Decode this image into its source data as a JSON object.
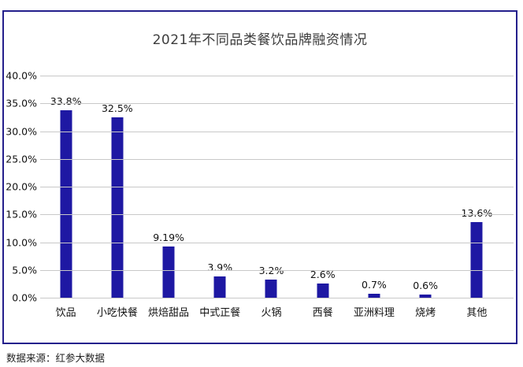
{
  "chart_data": {
    "type": "bar",
    "title": "2021年不同品类餐饮品牌融资情况",
    "categories": [
      "饮品",
      "小吃快餐",
      "烘焙甜品",
      "中式正餐",
      "火锅",
      "西餐",
      "亚洲料理",
      "烧烤",
      "其他"
    ],
    "values": [
      33.8,
      32.5,
      9.19,
      3.9,
      3.2,
      2.6,
      0.7,
      0.6,
      13.6
    ],
    "value_labels": [
      "33.8%",
      "32.5%",
      "9.19%",
      "3.9%",
      "3.2%",
      "2.6%",
      "0.7%",
      "0.6%",
      "13.6%"
    ],
    "xlabel": "",
    "ylabel": "",
    "ylim": [
      0,
      40
    ],
    "y_ticks": [
      "40.0%",
      "35.0%",
      "30.0%",
      "25.0%",
      "20.0%",
      "15.0%",
      "10.0%",
      "5.0%",
      "0.0%"
    ],
    "grid": true,
    "legend_position": "none",
    "bar_color": "#1E18A3"
  },
  "colors": {
    "frame_border": "#241F8C",
    "gridline": "#C8C8C8",
    "title_text": "#3D3D3D",
    "axis_text": "#111111",
    "bar": "#1E18A3"
  },
  "footer": {
    "source": "数据来源：红参大数据"
  }
}
